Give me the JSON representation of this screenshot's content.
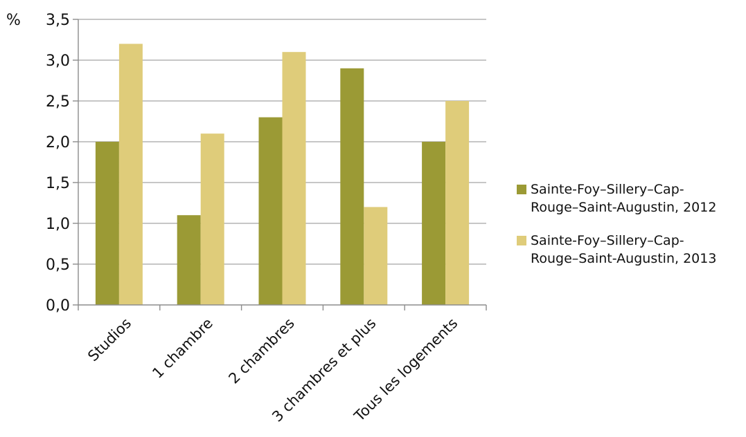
{
  "chart_data": {
    "type": "bar",
    "y_unit_label": "%",
    "categories": [
      "Studios",
      "1 chambre",
      "2 chambres",
      "3 chambres et plus",
      "Tous les logements"
    ],
    "series": [
      {
        "name": "Sainte-Foy–Sillery–Cap-Rouge–Saint-Augustin, 2012",
        "legend_lines": [
          "Sainte-Foy–Sillery–Cap-",
          "Rouge–Saint-Augustin, 2012"
        ],
        "values": [
          2.0,
          1.1,
          2.3,
          2.9,
          2.0
        ],
        "color": "#9b9a35"
      },
      {
        "name": "Sainte-Foy–Sillery–Cap-Rouge–Saint-Augustin, 2013",
        "legend_lines": [
          "Sainte-Foy–Sillery–Cap-",
          "Rouge–Saint-Augustin, 2013"
        ],
        "values": [
          3.2,
          2.1,
          3.1,
          1.2,
          2.5
        ],
        "color": "#dfcc7a"
      }
    ],
    "ylim": [
      0,
      3.5
    ],
    "yticks": [
      "0,0",
      "0,5",
      "1,0",
      "1,5",
      "2,0",
      "2,5",
      "3,0",
      "3,5"
    ],
    "grid": true,
    "legend_position": "right"
  }
}
